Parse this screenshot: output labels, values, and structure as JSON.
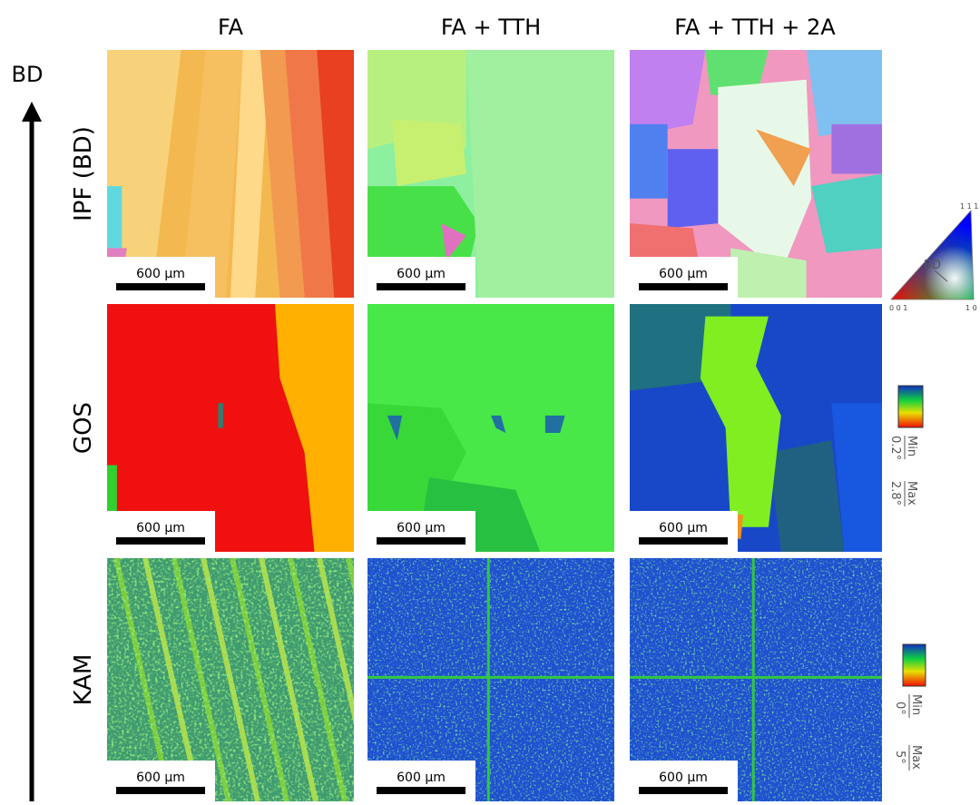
{
  "build_direction": "BD",
  "columns": [
    "FA",
    "FA + TTH",
    "FA + TTH + 2A"
  ],
  "rows": [
    "IPF (BD)",
    "GOS",
    "KAM"
  ],
  "scale_bar": "600 µm",
  "ipf_key": {
    "axis": "BD",
    "corner_001": "0 0 1",
    "corner_101": "1 0",
    "corner_111": "1 1 1"
  },
  "gos_key": {
    "min": "Min",
    "max": "Max",
    "min_value": "0.2°",
    "max_value": "2.8°"
  },
  "kam_key": {
    "min": "Min",
    "max": "Max",
    "min_value": "0°",
    "max_value": "5°"
  }
}
